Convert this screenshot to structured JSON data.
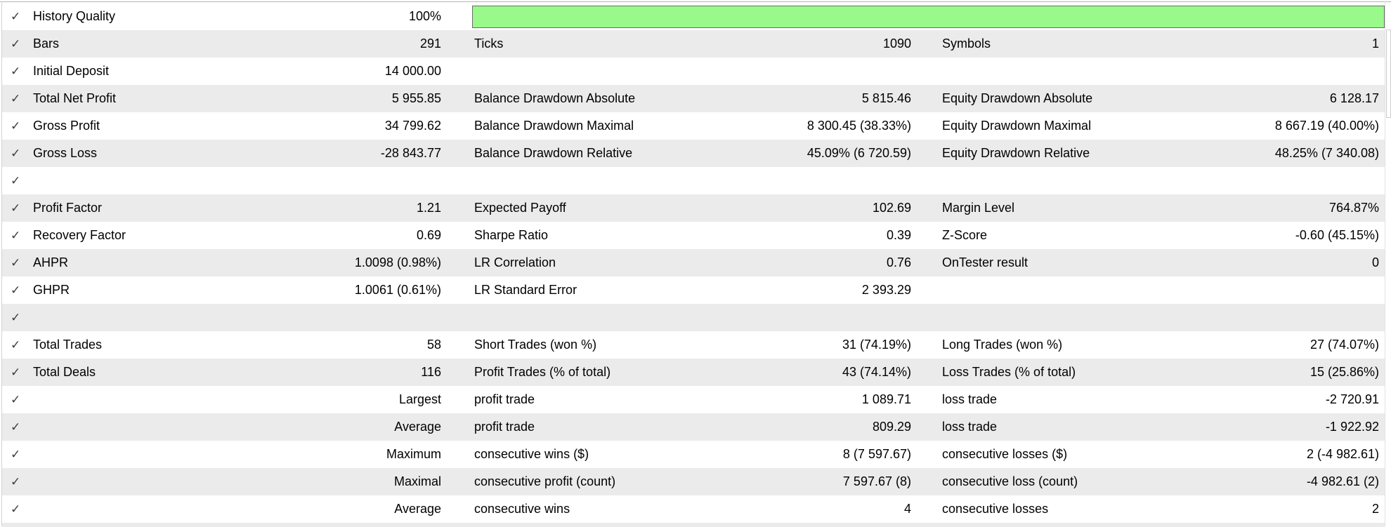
{
  "app": "MetaTrader Strategy Tester Backtest Results",
  "icons": {
    "check": "✓"
  },
  "colors": {
    "stripe": "#ebebeb",
    "background": "#ffffff",
    "text": "#000000",
    "quality_bar_fill": "#99f98b",
    "quality_bar_border": "#666e66"
  },
  "quality_bar": {
    "metric": "History Quality",
    "percent": "100%"
  },
  "rows": [
    {
      "label": "History Quality",
      "value": "100%"
    },
    {
      "label": "Bars",
      "value": "291",
      "c2": {
        "label": "Ticks",
        "value": "1090"
      },
      "c3": {
        "label": "Symbols",
        "value": "1"
      }
    },
    {
      "label": "Initial Deposit",
      "value": "14 000.00"
    },
    {
      "label": "Total Net Profit",
      "value": "5 955.85",
      "c2": {
        "label": "Balance Drawdown Absolute",
        "value": "5 815.46"
      },
      "c3": {
        "label": "Equity Drawdown Absolute",
        "value": "6 128.17"
      }
    },
    {
      "label": "Gross Profit",
      "value": "34 799.62",
      "c2": {
        "label": "Balance Drawdown Maximal",
        "value": "8 300.45 (38.33%)"
      },
      "c3": {
        "label": "Equity Drawdown Maximal",
        "value": "8 667.19 (40.00%)"
      }
    },
    {
      "label": "Gross Loss",
      "value": "-28 843.77",
      "c2": {
        "label": "Balance Drawdown Relative",
        "value": "45.09% (6 720.59)"
      },
      "c3": {
        "label": "Equity Drawdown Relative",
        "value": "48.25% (7 340.08)"
      }
    },
    {},
    {
      "label": "Profit Factor",
      "value": "1.21",
      "c2": {
        "label": "Expected Payoff",
        "value": "102.69"
      },
      "c3": {
        "label": "Margin Level",
        "value": "764.87%"
      }
    },
    {
      "label": "Recovery Factor",
      "value": "0.69",
      "c2": {
        "label": "Sharpe Ratio",
        "value": "0.39"
      },
      "c3": {
        "label": "Z-Score",
        "value": "-0.60 (45.15%)"
      }
    },
    {
      "label": "AHPR",
      "value": "1.0098 (0.98%)",
      "c2": {
        "label": "LR Correlation",
        "value": "0.76"
      },
      "c3": {
        "label": "OnTester result",
        "value": "0"
      }
    },
    {
      "label": "GHPR",
      "value": "1.0061 (0.61%)",
      "c2": {
        "label": "LR Standard Error",
        "value": "2 393.29"
      }
    },
    {},
    {
      "label": "Total Trades",
      "value": "58",
      "c2": {
        "label": "Short Trades (won %)",
        "value": "31 (74.19%)"
      },
      "c3": {
        "label": "Long Trades (won %)",
        "value": "27 (74.07%)"
      }
    },
    {
      "label": "Total Deals",
      "value": "116",
      "c2": {
        "label": "Profit Trades (% of total)",
        "value": "43 (74.14%)"
      },
      "c3": {
        "label": "Loss Trades (% of total)",
        "value": "15 (25.86%)"
      }
    },
    {
      "value": "Largest",
      "c2": {
        "label": "profit trade",
        "value": "1 089.71"
      },
      "c3": {
        "label": "loss trade",
        "value": "-2 720.91"
      }
    },
    {
      "value": "Average",
      "c2": {
        "label": "profit trade",
        "value": "809.29"
      },
      "c3": {
        "label": "loss trade",
        "value": "-1 922.92"
      }
    },
    {
      "value": "Maximum",
      "c2": {
        "label": "consecutive wins ($)",
        "value": "8 (7 597.67)"
      },
      "c3": {
        "label": "consecutive losses ($)",
        "value": "2 (-4 982.61)"
      }
    },
    {
      "value": "Maximal",
      "c2": {
        "label": "consecutive profit (count)",
        "value": "7 597.67 (8)"
      },
      "c3": {
        "label": "consecutive loss (count)",
        "value": "-4 982.61 (2)"
      }
    },
    {
      "value": "Average",
      "c2": {
        "label": "consecutive wins",
        "value": "4"
      },
      "c3": {
        "label": "consecutive losses",
        "value": "2"
      }
    }
  ]
}
